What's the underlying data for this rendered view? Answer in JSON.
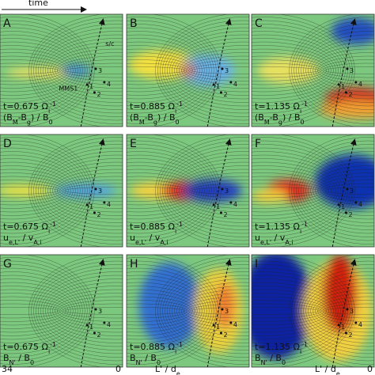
{
  "header": {
    "time": "time"
  },
  "panels": [
    {
      "label": "A",
      "time": [
        {
          "text": "t=0.675 Ω"
        },
        {
          "sub": "i"
        },
        {
          "sup": "-1"
        }
      ],
      "quantity": [
        {
          "text": "(B"
        },
        {
          "sub": "M"
        },
        {
          "text": "-B"
        },
        {
          "sub": "g"
        },
        {
          "text": ") / B"
        },
        {
          "sub": "0"
        }
      ]
    },
    {
      "label": "B",
      "time": [
        {
          "text": "t=0.885 Ω"
        },
        {
          "sub": "i"
        },
        {
          "sup": "-1"
        }
      ],
      "quantity": [
        {
          "text": "(B"
        },
        {
          "sub": "M"
        },
        {
          "text": "-B"
        },
        {
          "sub": "g"
        },
        {
          "text": ") / B"
        },
        {
          "sub": "0"
        }
      ]
    },
    {
      "label": "C",
      "time": [
        {
          "text": "t=1.135 Ω"
        },
        {
          "sub": "i"
        },
        {
          "sup": "-1"
        }
      ],
      "quantity": [
        {
          "text": "(B"
        },
        {
          "sub": "M"
        },
        {
          "text": "-B"
        },
        {
          "sub": "g"
        },
        {
          "text": ") / B"
        },
        {
          "sub": "0"
        }
      ]
    },
    {
      "label": "D",
      "time": [
        {
          "text": "t=0.675 Ω"
        },
        {
          "sub": "i"
        },
        {
          "sup": "-1"
        }
      ],
      "quantity": [
        {
          "text": "u"
        },
        {
          "sub": "e,L'"
        },
        {
          "text": " / v"
        },
        {
          "sub": "A,i"
        }
      ]
    },
    {
      "label": "E",
      "time": [
        {
          "text": "t=0.885 Ω"
        },
        {
          "sub": "i"
        },
        {
          "sup": "-1"
        }
      ],
      "quantity": [
        {
          "text": "u"
        },
        {
          "sub": "e,L'"
        },
        {
          "text": " / v"
        },
        {
          "sub": "A,i"
        }
      ]
    },
    {
      "label": "F",
      "time": [
        {
          "text": "t=1.135 Ω"
        },
        {
          "sub": "i"
        },
        {
          "sup": "-1"
        }
      ],
      "quantity": [
        {
          "text": "u"
        },
        {
          "sub": "e,L'"
        },
        {
          "text": " / v"
        },
        {
          "sub": "A,i"
        }
      ]
    },
    {
      "label": "G",
      "time": [
        {
          "text": "t=0.675 Ω"
        },
        {
          "sub": "i"
        },
        {
          "sup": "-1"
        }
      ],
      "quantity": [
        {
          "text": "B"
        },
        {
          "sub": "N'"
        },
        {
          "text": " / B"
        },
        {
          "sub": "0"
        }
      ]
    },
    {
      "label": "H",
      "time": [
        {
          "text": "t=0.885 Ω"
        },
        {
          "sub": "i"
        },
        {
          "sup": "-1"
        }
      ],
      "quantity": [
        {
          "text": "B"
        },
        {
          "sub": "N'"
        },
        {
          "text": " / B"
        },
        {
          "sub": "0"
        }
      ]
    },
    {
      "label": "I",
      "time": [
        {
          "text": "t=1.135 Ω"
        },
        {
          "sub": "i"
        },
        {
          "sup": "-1"
        }
      ],
      "quantity": [
        {
          "text": "B"
        },
        {
          "sub": "N'"
        },
        {
          "text": " / B"
        },
        {
          "sub": "0"
        }
      ]
    }
  ],
  "annotations": {
    "sc": "s/c",
    "mms": "MMS1",
    "probes": [
      "1",
      "2",
      "3",
      "4"
    ]
  },
  "axis": {
    "left": "34",
    "right": "0",
    "label": [
      {
        "text": "L' / d"
      },
      {
        "sub": "e"
      }
    ]
  }
}
